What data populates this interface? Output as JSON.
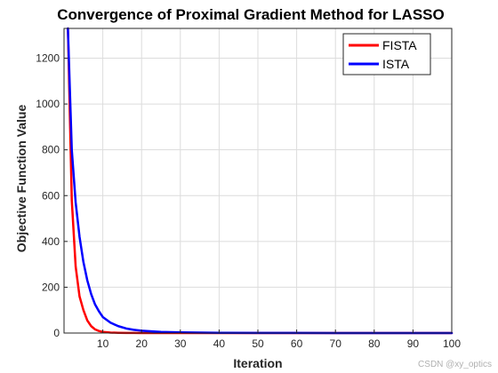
{
  "watermark": "CSDN @xy_optics",
  "chart_data": {
    "type": "line",
    "title": "Convergence of Proximal Gradient Method for LASSO",
    "xlabel": "Iteration",
    "ylabel": "Objective Function Value",
    "xlim": [
      0,
      100
    ],
    "ylim": [
      0,
      1330
    ],
    "xticks": [
      10,
      20,
      30,
      40,
      50,
      60,
      70,
      80,
      90,
      100
    ],
    "yticks": [
      0,
      200,
      400,
      600,
      800,
      1000,
      1200
    ],
    "grid": true,
    "legend_position": "top-right",
    "x": [
      1,
      2,
      3,
      4,
      5,
      6,
      7,
      8,
      9,
      10,
      12,
      14,
      16,
      18,
      20,
      25,
      30,
      40,
      50,
      60,
      70,
      80,
      90,
      100
    ],
    "series": [
      {
        "name": "FISTA",
        "color": "#ff0000",
        "values": [
          1330,
          580,
          290,
          160,
          100,
          55,
          30,
          16,
          9,
          5,
          2,
          1,
          0.5,
          0.3,
          0.2,
          0.1,
          0.1,
          0.1,
          0.1,
          0.1,
          0.1,
          0.1,
          0.1,
          0.1
        ]
      },
      {
        "name": "ISTA",
        "color": "#0000ff",
        "values": [
          1330,
          800,
          570,
          420,
          310,
          230,
          170,
          125,
          95,
          70,
          45,
          30,
          20,
          14,
          10,
          5,
          3,
          1,
          0.5,
          0.3,
          0.2,
          0.1,
          0.1,
          0.1
        ]
      }
    ]
  }
}
